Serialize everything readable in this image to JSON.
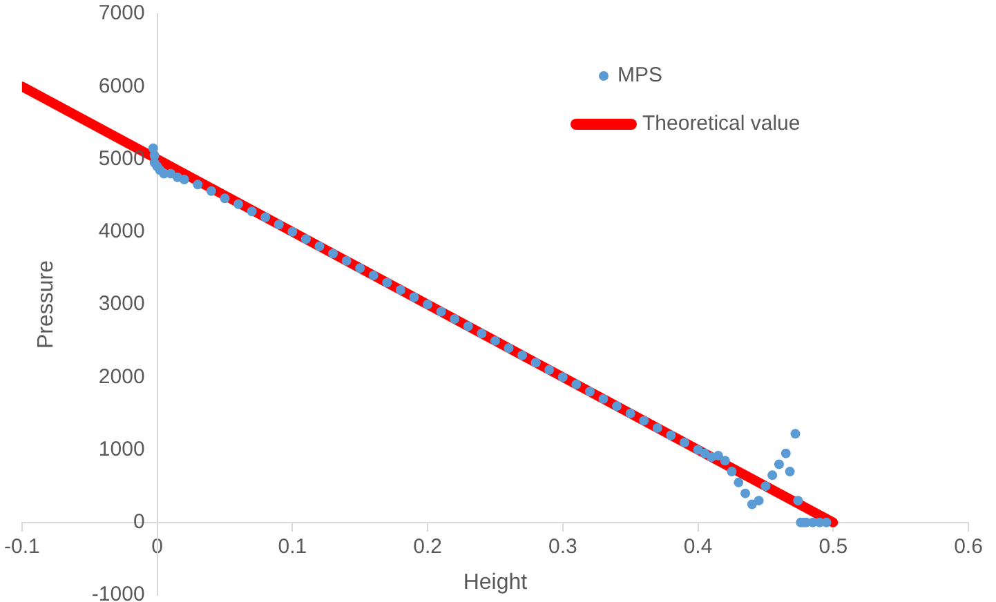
{
  "chart_data": {
    "type": "scatter",
    "xlabel": "Height",
    "ylabel": "Pressure",
    "xlim": [
      -0.1,
      0.6
    ],
    "ylim": [
      -1000,
      7000
    ],
    "xticks": [
      -0.1,
      0,
      0.1,
      0.2,
      0.3,
      0.4,
      0.5,
      0.6
    ],
    "yticks": [
      -1000,
      0,
      1000,
      2000,
      3000,
      4000,
      5000,
      6000,
      7000
    ],
    "grid": false,
    "legend": "top right",
    "series": [
      {
        "name": "MPS",
        "type": "scatter",
        "marker": "circle",
        "color": "#5b9bd5",
        "x": [
          -0.003,
          -0.002,
          -0.002,
          0,
          0.002,
          0.005,
          0.01,
          0.015,
          0.02,
          0.03,
          0.04,
          0.05,
          0.06,
          0.07,
          0.08,
          0.09,
          0.1,
          0.11,
          0.12,
          0.13,
          0.14,
          0.15,
          0.16,
          0.17,
          0.18,
          0.19,
          0.2,
          0.21,
          0.22,
          0.23,
          0.24,
          0.25,
          0.26,
          0.27,
          0.28,
          0.29,
          0.3,
          0.31,
          0.32,
          0.33,
          0.34,
          0.35,
          0.36,
          0.37,
          0.38,
          0.39,
          0.4,
          0.405,
          0.41,
          0.415,
          0.42,
          0.425,
          0.43,
          0.435,
          0.44,
          0.445,
          0.45,
          0.455,
          0.46,
          0.465,
          0.468,
          0.472,
          0.474,
          0.476,
          0.478,
          0.48,
          0.485,
          0.49,
          0.495
        ],
        "values": [
          5150,
          5050,
          4950,
          4900,
          4850,
          4800,
          4800,
          4750,
          4720,
          4650,
          4560,
          4460,
          4380,
          4280,
          4200,
          4100,
          4000,
          3900,
          3800,
          3700,
          3600,
          3500,
          3400,
          3300,
          3200,
          3100,
          3000,
          2900,
          2800,
          2700,
          2600,
          2500,
          2400,
          2300,
          2200,
          2100,
          2000,
          1900,
          1800,
          1700,
          1600,
          1500,
          1400,
          1300,
          1200,
          1100,
          1000,
          950,
          900,
          920,
          850,
          700,
          550,
          400,
          250,
          300,
          500,
          650,
          800,
          950,
          700,
          1220,
          300,
          0,
          0,
          0,
          0,
          0,
          0
        ]
      },
      {
        "name": "Theoretical value",
        "type": "line",
        "color": "#ff0000",
        "marker": "none",
        "line_style": "solid",
        "x": [
          -0.1,
          0.5
        ],
        "values": [
          6000,
          0
        ]
      }
    ]
  }
}
